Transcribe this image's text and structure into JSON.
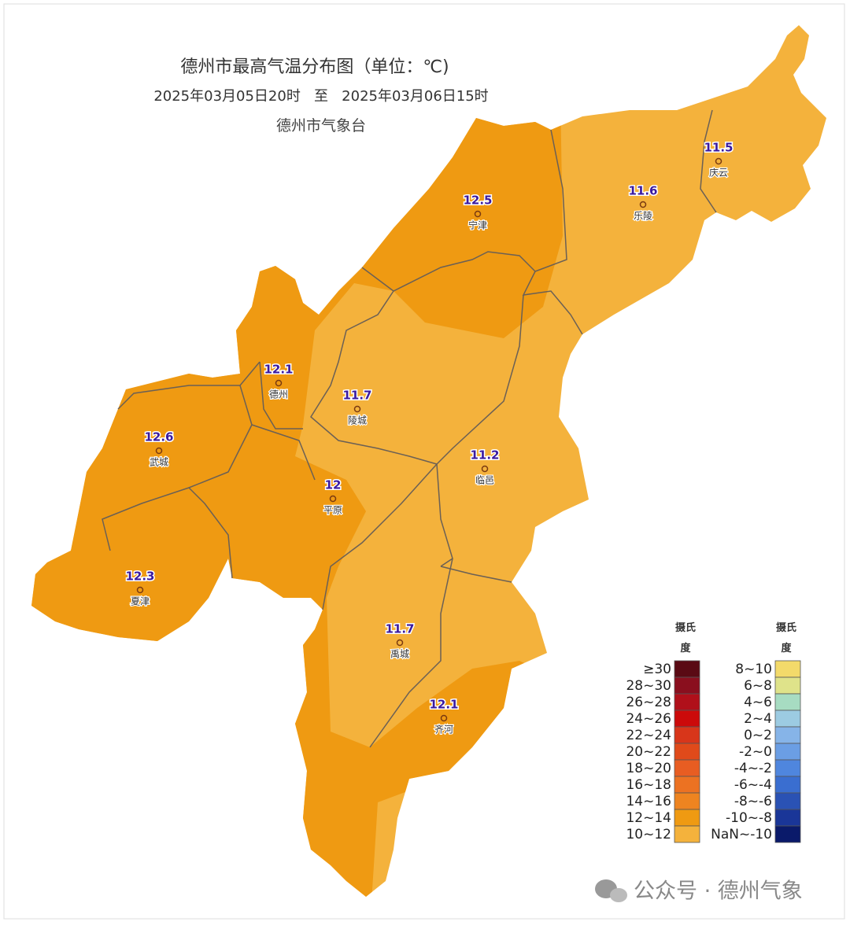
{
  "header": {
    "title": "德州市最高气温分布图（单位：℃)",
    "period": "2025年03月05日20时   至   2025年03月06日15时",
    "issuer": "德州市气象台"
  },
  "stations": [
    {
      "name": "庆云",
      "value": 11.5
    },
    {
      "name": "乐陵",
      "value": 11.6
    },
    {
      "name": "宁津",
      "value": 12.5
    },
    {
      "name": "德州",
      "value": 12.1
    },
    {
      "name": "陵城",
      "value": 11.7
    },
    {
      "name": "武城",
      "value": 12.6
    },
    {
      "name": "临邑",
      "value": 11.2
    },
    {
      "name": "平原",
      "value": 12
    },
    {
      "name": "夏津",
      "value": 12.3
    },
    {
      "name": "禹城",
      "value": 11.7
    },
    {
      "name": "齐河",
      "value": 12.1
    }
  ],
  "legend": {
    "columns": [
      {
        "unit": "摄氏度",
        "items": [
          {
            "label": "≥30",
            "color": "#5a0a14"
          },
          {
            "label": "28~30",
            "color": "#8a0f1e"
          },
          {
            "label": "26~28",
            "color": "#b0101a"
          },
          {
            "label": "24~26",
            "color": "#cc0a0a"
          },
          {
            "label": "22~24",
            "color": "#d8361a"
          },
          {
            "label": "20~22",
            "color": "#e04a1a"
          },
          {
            "label": "18~20",
            "color": "#e85d22"
          },
          {
            "label": "16~18",
            "color": "#ec7222"
          },
          {
            "label": "14~16",
            "color": "#ee8420"
          },
          {
            "label": "12~14",
            "color": "#ef9a12"
          },
          {
            "label": "10~12",
            "color": "#f4b23c"
          }
        ]
      },
      {
        "unit": "摄氏度",
        "items": [
          {
            "label": "8~10",
            "color": "#f3da6a"
          },
          {
            "label": "6~8",
            "color": "#dfe38a"
          },
          {
            "label": "4~6",
            "color": "#a7dcc2"
          },
          {
            "label": "2~4",
            "color": "#9ccbe2"
          },
          {
            "label": "0~2",
            "color": "#86b4e8"
          },
          {
            "label": "-2~0",
            "color": "#6b9ee4"
          },
          {
            "label": "-4~-2",
            "color": "#4f86de"
          },
          {
            "label": "-6~-4",
            "color": "#3a6ed0"
          },
          {
            "label": "-8~-6",
            "color": "#2a52b4"
          },
          {
            "label": "-10~-8",
            "color": "#1a3698"
          },
          {
            "label": "NaN~-10",
            "color": "#0a1a6a"
          }
        ]
      }
    ]
  },
  "watermark": "公众号 · 德州气象"
}
